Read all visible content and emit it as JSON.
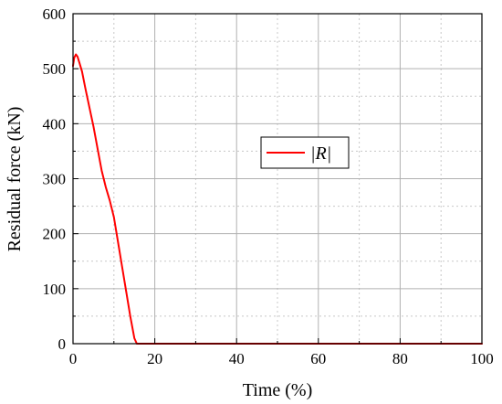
{
  "chart_data": {
    "type": "line",
    "xlabel": "Time (%)",
    "ylabel": "Residual force (kN)",
    "xlim": [
      0,
      100
    ],
    "ylim": [
      0,
      600
    ],
    "xticks": [
      0,
      20,
      40,
      60,
      80,
      100
    ],
    "yticks": [
      0,
      100,
      200,
      300,
      400,
      500,
      600
    ],
    "grid": true,
    "minor_grid": true,
    "legend": {
      "placement": "center-right",
      "entries": [
        "|R|"
      ]
    },
    "colors": {
      "series": "#ff0000",
      "axis": "#000000",
      "grid": "#b0b0b0"
    },
    "series": [
      {
        "name": "|R|",
        "color": "#ff0000",
        "x": [
          0,
          0.3,
          0.7,
          1.1,
          1.6,
          2.2,
          3.0,
          4.0,
          5.0,
          6.0,
          7.0,
          8.0,
          9.0,
          10.0,
          11.0,
          12.0,
          13.0,
          14.0,
          15.0,
          15.6,
          20,
          30,
          40,
          50,
          60,
          70,
          80,
          90,
          100
        ],
        "y": [
          505,
          520,
          526,
          522,
          510,
          495,
          465,
          430,
          395,
          355,
          315,
          285,
          260,
          230,
          185,
          140,
          95,
          50,
          10,
          0,
          0,
          0,
          0,
          0,
          0,
          0,
          0,
          0,
          0
        ]
      }
    ]
  }
}
